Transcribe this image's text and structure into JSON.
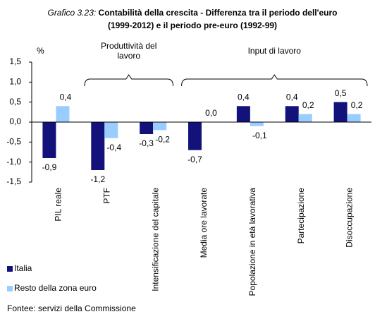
{
  "chart_data": {
    "type": "bar",
    "title_prefix": "Grafico 3.23:",
    "title": [
      "Contabilità della crescita - Differenza tra il periodo dell'euro",
      "(1999-2012) e  il periodo pre-euro (1992-99)"
    ],
    "y_label": "%",
    "categories": [
      "PIL reale",
      "PTF",
      "Intensificazione del capitale",
      "Media ore lavorate",
      "Popolazione in età lavorativa",
      "Partecipazione",
      "Disoccupazione"
    ],
    "series": [
      {
        "name": "Italia",
        "color": "#12127a",
        "values": [
          -0.9,
          -1.2,
          -0.3,
          -0.7,
          0.4,
          0.4,
          0.5
        ],
        "value_labels": [
          "-0,9",
          "-1,2",
          "-0,3",
          "-0,7",
          "0,4",
          "0,4",
          "0,5"
        ]
      },
      {
        "name": "Resto della zona euro",
        "color": "#99ccff",
        "values": [
          0.4,
          -0.4,
          -0.2,
          0.0,
          -0.1,
          0.2,
          0.2
        ],
        "value_labels": [
          "0,4",
          "-0,4",
          "-0,2",
          "0,0",
          "-0,1",
          "0,2",
          "0,2"
        ]
      }
    ],
    "ylim": [
      -1.5,
      1.5
    ],
    "yticks": [
      {
        "value": 1.5,
        "label": "1,5"
      },
      {
        "value": 1.0,
        "label": "1,0"
      },
      {
        "value": 0.5,
        "label": "0,5"
      },
      {
        "value": 0,
        "label": "0,0"
      },
      {
        "value": -0.5,
        "label": "-0,5"
      },
      {
        "value": -1.0,
        "label": "-1,0"
      },
      {
        "value": -1.5,
        "label": "-1,5"
      }
    ],
    "annotations": [
      [
        "Produttività del",
        "lavoro"
      ],
      [
        "Input di lavoro"
      ]
    ],
    "source": "Fontee: servizi della Commissione"
  }
}
